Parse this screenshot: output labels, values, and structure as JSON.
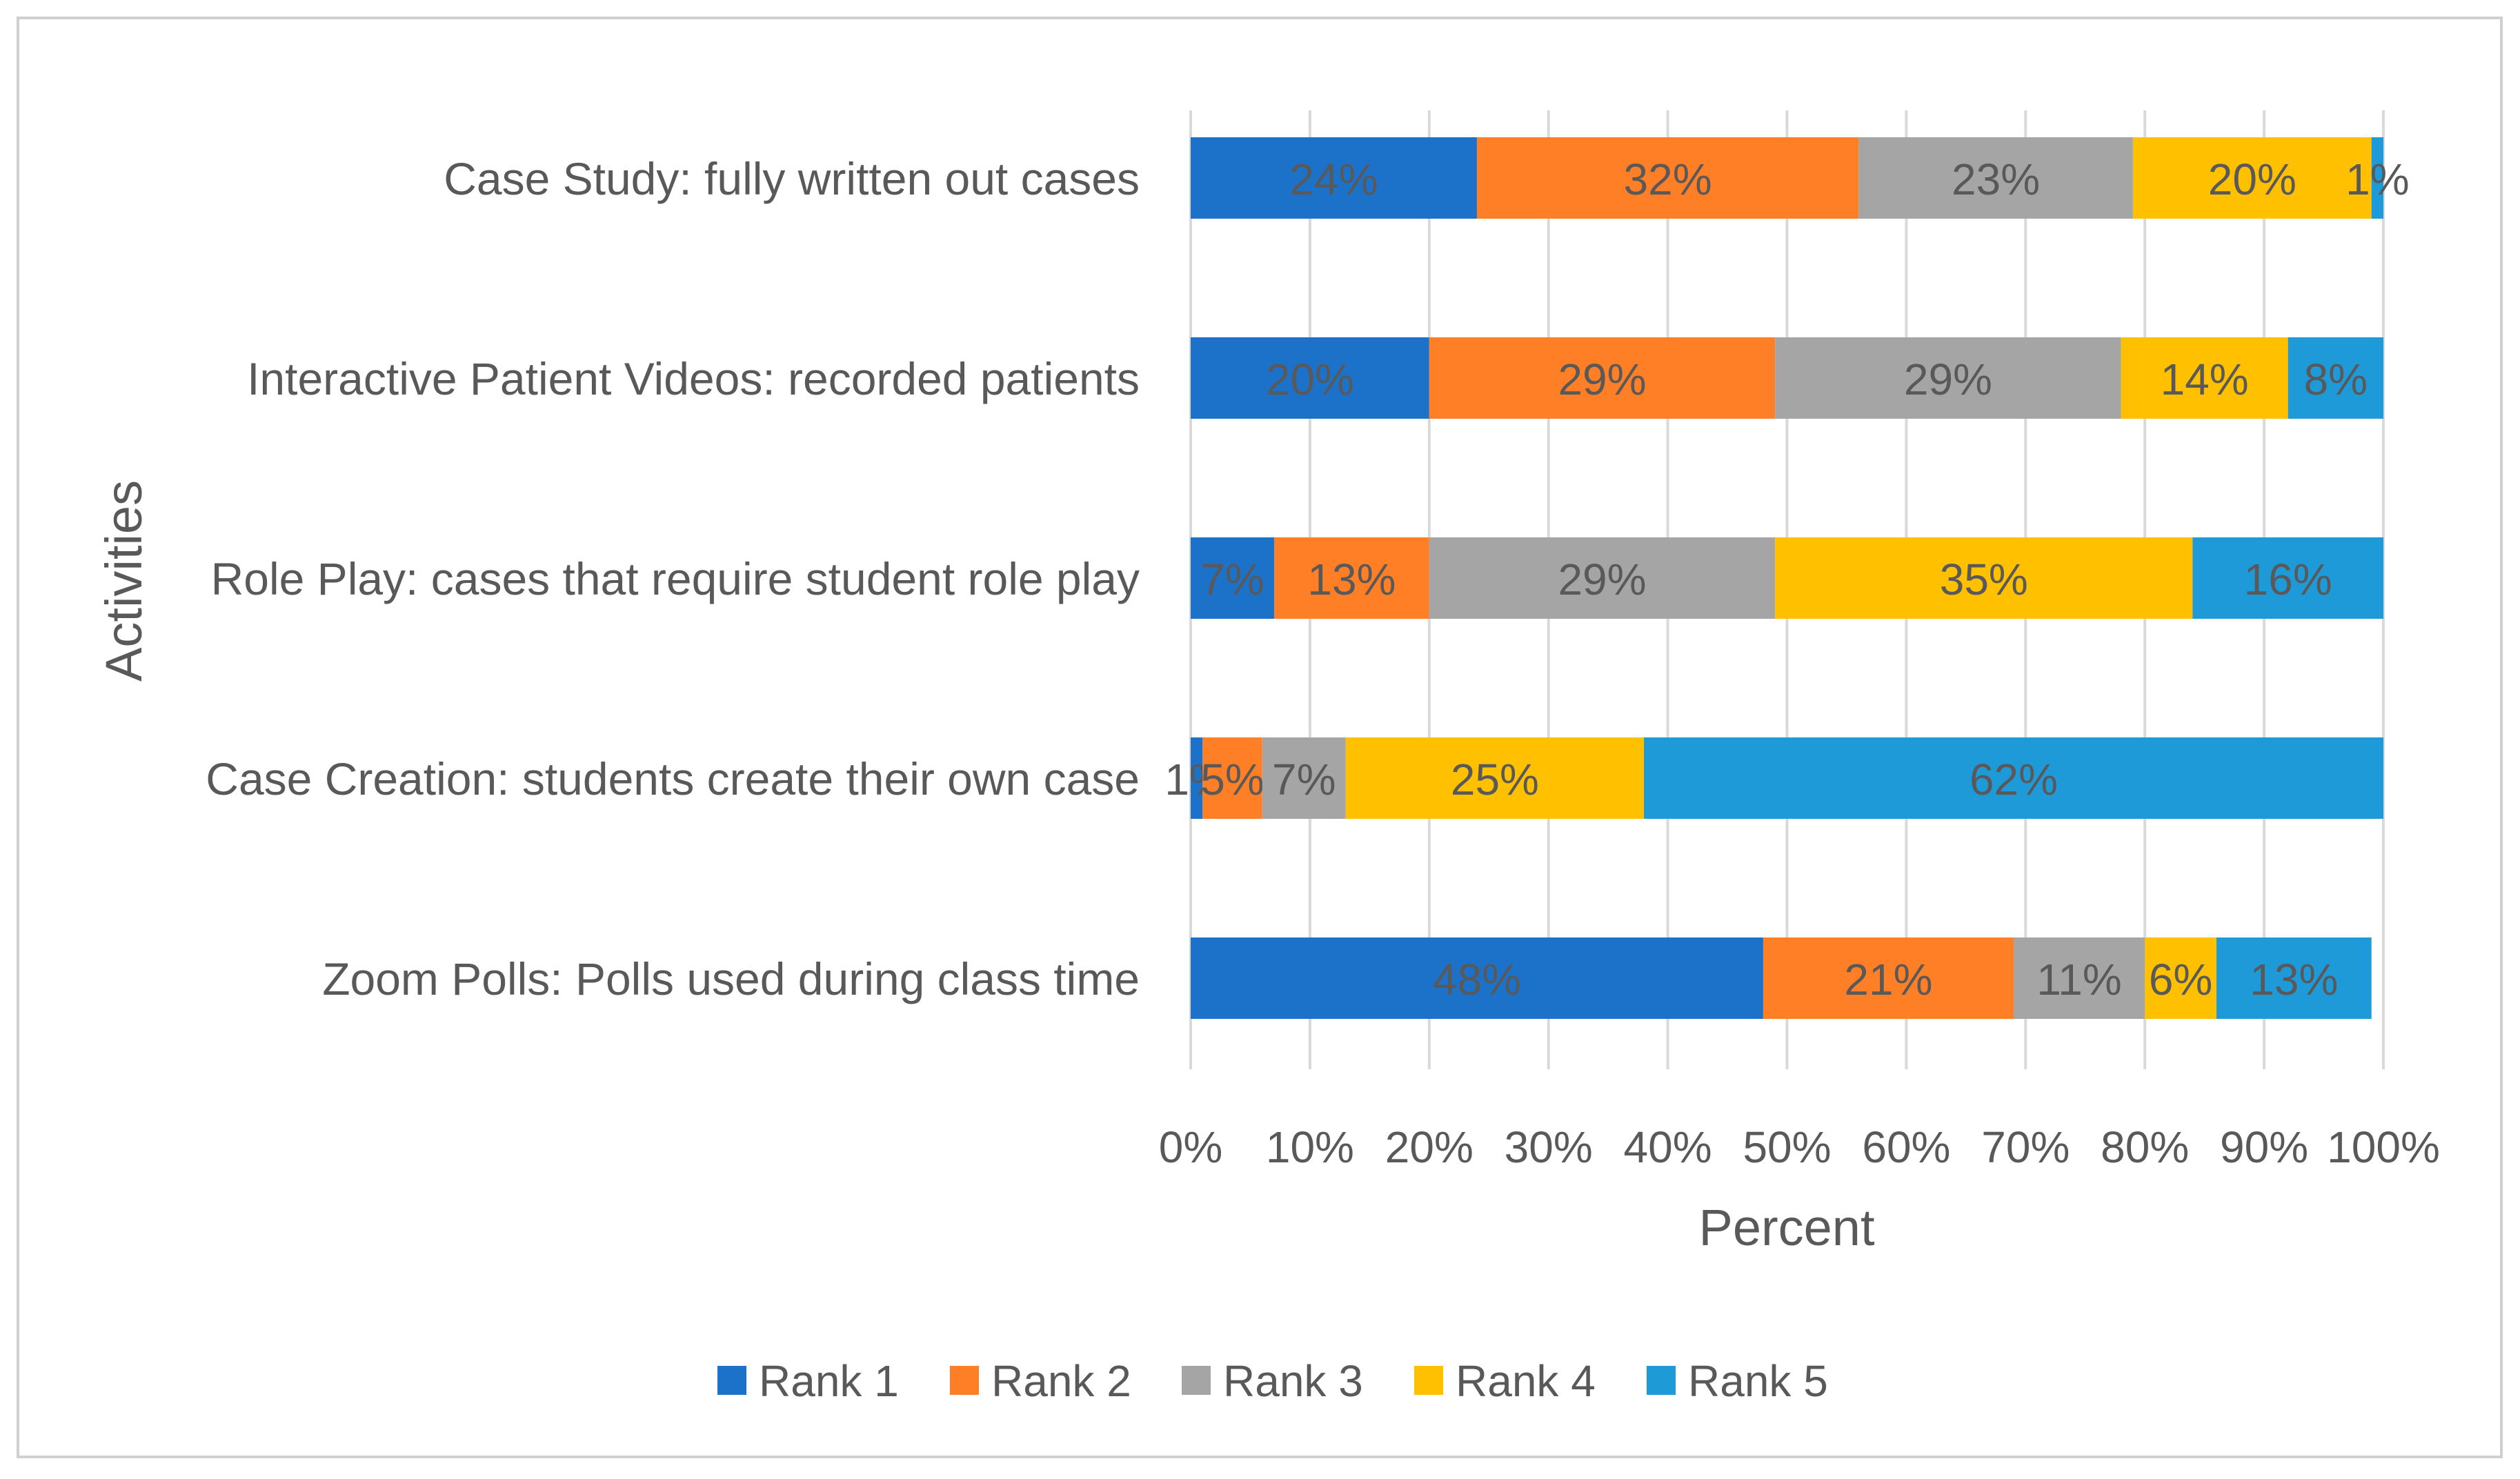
{
  "chart_data": {
    "type": "bar",
    "orientation": "horizontal",
    "stacked": true,
    "title": "",
    "xlabel": "Percent",
    "ylabel": "Activities",
    "xlim": [
      0,
      100
    ],
    "xticks": [
      "0%",
      "10%",
      "20%",
      "30%",
      "40%",
      "50%",
      "60%",
      "70%",
      "80%",
      "90%",
      "100%"
    ],
    "grid": true,
    "legend_position": "bottom",
    "categories": [
      "Case Study: fully written out cases",
      "Interactive Patient Videos: recorded patients",
      "Role Play: cases that require student role play",
      "Case Creation: students create their own case",
      "Zoom Polls: Polls used during class time"
    ],
    "series": [
      {
        "name": "Rank 1",
        "color": "#1c72c8",
        "values": [
          24,
          20,
          7,
          1,
          48
        ],
        "labels": [
          "24%",
          "20%",
          "7%",
          "1%",
          "48%"
        ]
      },
      {
        "name": "Rank 2",
        "color": "#ff7f26",
        "values": [
          32,
          29,
          13,
          5,
          21
        ],
        "labels": [
          "32%",
          "29%",
          "13%",
          "5%",
          "21%"
        ]
      },
      {
        "name": "Rank 3",
        "color": "#a5a5a5",
        "values": [
          23,
          29,
          29,
          7,
          11
        ],
        "labels": [
          "23%",
          "29%",
          "29%",
          "7%",
          "11%"
        ]
      },
      {
        "name": "Rank 4",
        "color": "#ffc000",
        "values": [
          20,
          14,
          35,
          25,
          6
        ],
        "labels": [
          "20%",
          "14%",
          "35%",
          "25%",
          "6%"
        ]
      },
      {
        "name": "Rank 5",
        "color": "#1f9ad9",
        "values": [
          1,
          8,
          16,
          62,
          13
        ],
        "labels": [
          "1%",
          "8%",
          "16%",
          "62%",
          "13%"
        ]
      }
    ]
  }
}
